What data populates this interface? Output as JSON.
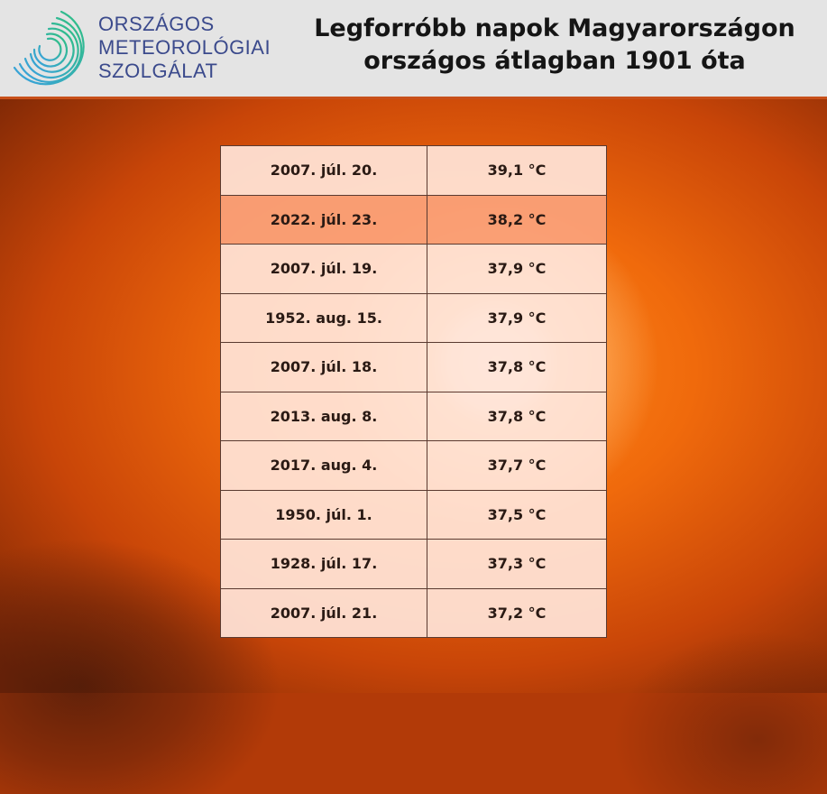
{
  "logo": {
    "lines": [
      "ORSZÁGOS",
      "METEOROLÓGIAI",
      "SZOLGÁLAT"
    ],
    "color": "#3b4a8c"
  },
  "title": {
    "line1": "Legforróbb napok Magyarországon",
    "line2": "országos átlagban 1901 óta"
  },
  "highlight_color": "#f6a07a",
  "rows": [
    {
      "date": "2007. júl. 20.",
      "temp": "39,1 °C",
      "highlighted": false
    },
    {
      "date": "2022. júl. 23.",
      "temp": "38,2 °C",
      "highlighted": true
    },
    {
      "date": "2007. júl. 19.",
      "temp": "37,9 °C",
      "highlighted": false
    },
    {
      "date": "1952. aug. 15.",
      "temp": "37,9 °C",
      "highlighted": false
    },
    {
      "date": "2007. júl. 18.",
      "temp": "37,8 °C",
      "highlighted": false
    },
    {
      "date": "2013. aug. 8.",
      "temp": "37,8 °C",
      "highlighted": false
    },
    {
      "date": "2017. aug. 4.",
      "temp": "37,7 °C",
      "highlighted": false
    },
    {
      "date": "1950. júl. 1.",
      "temp": "37,5 °C",
      "highlighted": false
    },
    {
      "date": "1928. júl. 17.",
      "temp": "37,3 °C",
      "highlighted": false
    },
    {
      "date": "2007. júl. 21.",
      "temp": "37,2 °C",
      "highlighted": false
    }
  ]
}
